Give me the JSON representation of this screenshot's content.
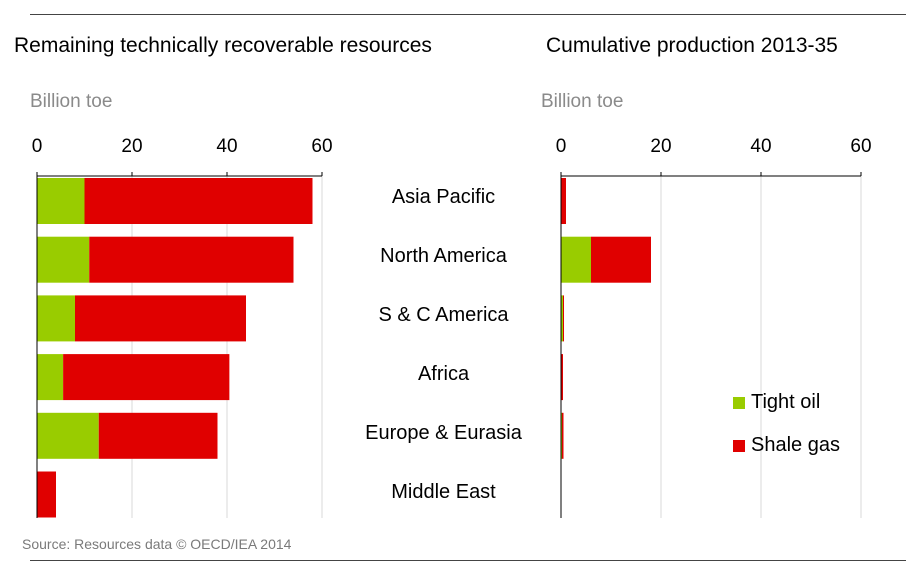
{
  "header": {
    "left_title": "Remaining technically recoverable resources",
    "right_title": "Cumulative production 2013-35"
  },
  "unit_left": "Billion toe",
  "unit_right": "Billion toe",
  "source": "Source: Resources data © OECD/IEA 2014",
  "legend": [
    {
      "label": "Tight oil",
      "color": "#99cc00"
    },
    {
      "label": "Shale gas",
      "color": "#e00000"
    }
  ],
  "chart_data": [
    {
      "type": "bar",
      "orientation": "horizontal",
      "stacked": true,
      "title": "Remaining technically recoverable resources",
      "xlabel": "Billion toe",
      "xlim": [
        0,
        60
      ],
      "ticks": [
        0,
        20,
        40,
        60
      ],
      "categories": [
        "Asia Pacific",
        "North America",
        "S & C America",
        "Africa",
        "Europe & Eurasia",
        "Middle East"
      ],
      "series": [
        {
          "name": "Tight oil",
          "color": "#99cc00",
          "values": [
            10,
            11,
            8,
            5.5,
            13,
            0
          ]
        },
        {
          "name": "Shale gas",
          "color": "#e00000",
          "values": [
            48,
            43,
            36,
            35,
            25,
            4
          ]
        }
      ]
    },
    {
      "type": "bar",
      "orientation": "horizontal",
      "stacked": true,
      "title": "Cumulative production 2013-35",
      "xlabel": "Billion toe",
      "xlim": [
        0,
        60
      ],
      "ticks": [
        0,
        20,
        40,
        60
      ],
      "categories": [
        "Asia Pacific",
        "North America",
        "S & C America",
        "Africa",
        "Europe & Eurasia",
        "Middle East"
      ],
      "series": [
        {
          "name": "Tight oil",
          "color": "#99cc00",
          "values": [
            0,
            6,
            0.4,
            0,
            0.2,
            0
          ]
        },
        {
          "name": "Shale gas",
          "color": "#e00000",
          "values": [
            1,
            12,
            0.2,
            0.4,
            0.3,
            0
          ]
        }
      ]
    }
  ]
}
